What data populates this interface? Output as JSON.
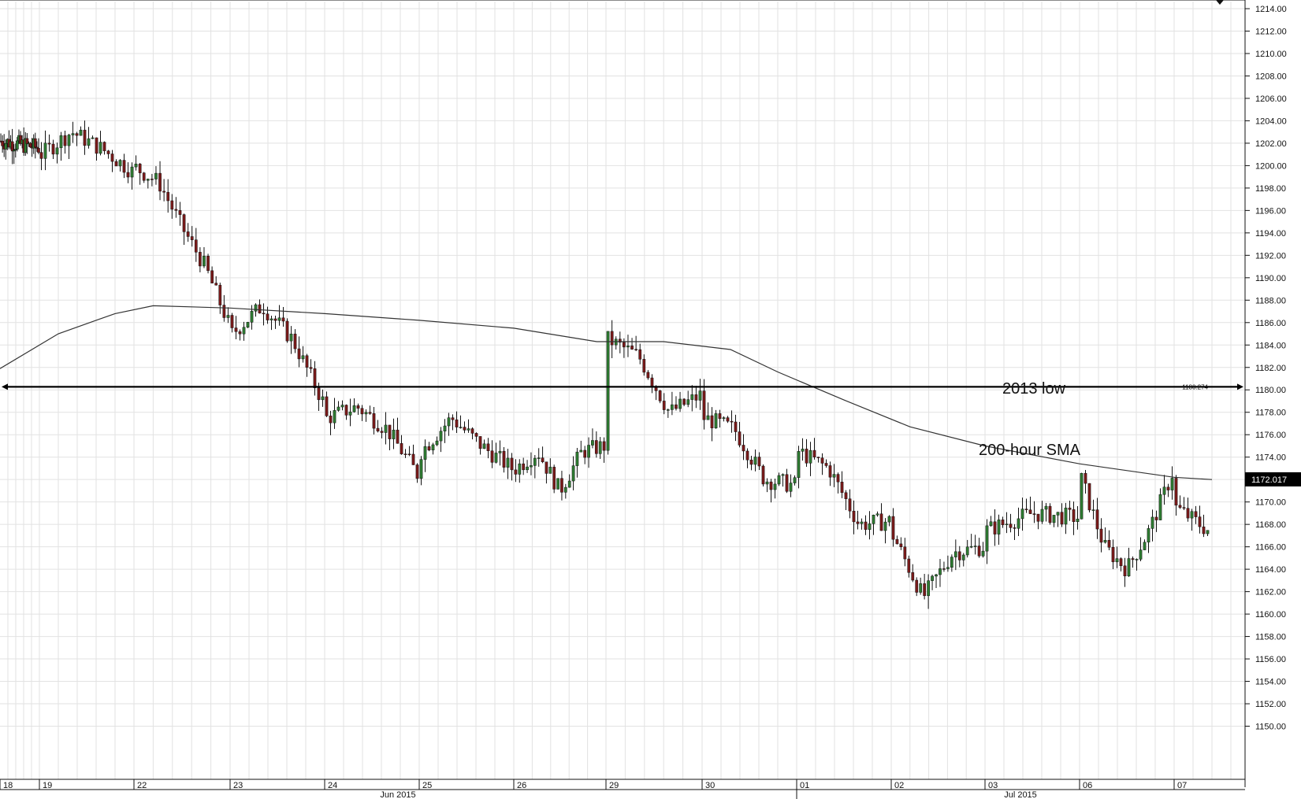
{
  "chart_data": {
    "type": "candlestick",
    "title": "",
    "xlabel": "",
    "ylabel": "",
    "ylim": [
      1148,
      1215
    ],
    "y_ticks": [
      "1150.00",
      "1152.00",
      "1154.00",
      "1156.00",
      "1158.00",
      "1160.00",
      "1162.00",
      "1164.00",
      "1166.00",
      "1168.00",
      "1170.00",
      "1172.00",
      "1174.00",
      "1176.00",
      "1178.00",
      "1180.00",
      "1182.00",
      "1184.00",
      "1186.00",
      "1188.00",
      "1190.00",
      "1192.00",
      "1194.00",
      "1196.00",
      "1198.00",
      "1200.00",
      "1202.00",
      "1204.00",
      "1206.00",
      "1208.00",
      "1210.00",
      "1212.00",
      "1214.00"
    ],
    "x_day_labels": [
      "18",
      "19",
      "22",
      "23",
      "24",
      "25",
      "26",
      "29",
      "30",
      "01",
      "02",
      "03",
      "06",
      "07"
    ],
    "x_month_labels": [
      "Jun 2015",
      "Jul 2015"
    ],
    "day_closes": {
      "18": [
        1202.2,
        1201.6
      ],
      "19": [
        1201.0,
        1203.0,
        1201.5,
        1199.5
      ],
      "22": [
        1199.8,
        1198.5,
        1194.5,
        1191.0,
        1186.0
      ],
      "23": [
        1185.0,
        1187.5,
        1184.5,
        1179.0
      ],
      "24": [
        1177.5,
        1178.5,
        1176.5,
        1172.5
      ],
      "25": [
        1174.5,
        1177.5,
        1175.0,
        1173.0
      ],
      "26": [
        1173.0,
        1174.5,
        1171.0,
        1174.5,
        1175.0
      ],
      "29": [
        1184.5,
        1183.0,
        1178.0,
        1179.5
      ],
      "30": [
        1177.5,
        1176.5,
        1172.0,
        1171.5
      ],
      "01": [
        1174.5,
        1173.0,
        1168.0,
        1168.3
      ],
      "02": [
        1167.0,
        1161.5,
        1165.5,
        1166.0
      ],
      "03": [
        1167.5,
        1169.0,
        1168.6
      ],
      "06": [
        1172.0,
        1166.0,
        1164.0,
        1167.5,
        1172.5
      ],
      "07": [
        1169.5,
        1167.5
      ]
    },
    "series": [
      {
        "name": "200-hour SMA",
        "values": [
          [
            0,
            1181.9
          ],
          [
            1.2,
            1185.0
          ],
          [
            1.8,
            1186.8
          ],
          [
            2.2,
            1187.5
          ],
          [
            3.0,
            1187.3
          ],
          [
            4.0,
            1186.8
          ],
          [
            5.0,
            1186.2
          ],
          [
            6.0,
            1185.5
          ],
          [
            6.9,
            1184.3
          ],
          [
            7.6,
            1184.3
          ],
          [
            8.3,
            1183.6
          ],
          [
            8.8,
            1181.6
          ],
          [
            9.5,
            1179.1
          ],
          [
            10.2,
            1176.7
          ],
          [
            11.0,
            1175.0
          ],
          [
            12.0,
            1173.4
          ],
          [
            13.0,
            1172.2
          ],
          [
            13.4,
            1172.0
          ]
        ]
      }
    ],
    "hline": {
      "value": 1180.274,
      "label": "1180.274"
    },
    "last_price": {
      "value": 1172.017,
      "label": "1172.017"
    },
    "annotations": [
      "2013 low",
      "200-hour SMA"
    ],
    "grid": true,
    "colors": {
      "up": "#2e7d32",
      "down": "#7b1a1a",
      "tag_bg": "#000000"
    }
  }
}
